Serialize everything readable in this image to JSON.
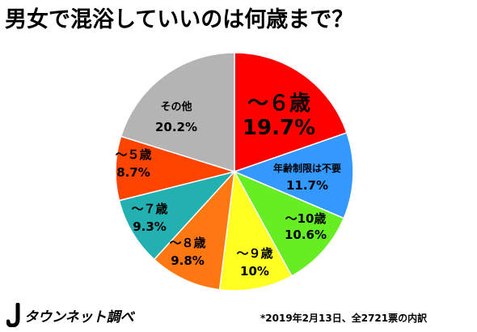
{
  "chart_data": {
    "type": "pie",
    "title": "男女で混浴していいのは何歳まで？",
    "start_angle_deg": 0,
    "direction": "clockwise",
    "slices": [
      {
        "label": "～６歳",
        "value": 19.7,
        "value_label": "19.7%",
        "color": "#ff0000",
        "text_color": "#000000"
      },
      {
        "label": "年齢制限は不要",
        "value": 11.7,
        "value_label": "11.7%",
        "color": "#3399ff",
        "text_color": "#000000"
      },
      {
        "label": "～10歳",
        "value": 10.6,
        "value_label": "10.6%",
        "color": "#66ee22",
        "text_color": "#000000"
      },
      {
        "label": "～９歳",
        "value": 10.0,
        "value_label": "10%",
        "color": "#ffff22",
        "text_color": "#000000"
      },
      {
        "label": "～８歳",
        "value": 9.8,
        "value_label": "9.8%",
        "color": "#ff7711",
        "text_color": "#000000"
      },
      {
        "label": "～７歳",
        "value": 9.3,
        "value_label": "9.3%",
        "color": "#22b0b0",
        "text_color": "#000000"
      },
      {
        "label": "～５歳",
        "value": 8.7,
        "value_label": "8.7%",
        "color": "#ff4400",
        "text_color": "#000000"
      },
      {
        "label": "その他",
        "value": 20.2,
        "value_label": "20.2%",
        "color": "#b4b4b4",
        "text_color": "#000000"
      }
    ]
  },
  "logo": {
    "text": "タウンネット調べ",
    "icon": "j-townnet-logo-icon"
  },
  "footnote": "*2019年2月13日、全2721票の内訳"
}
